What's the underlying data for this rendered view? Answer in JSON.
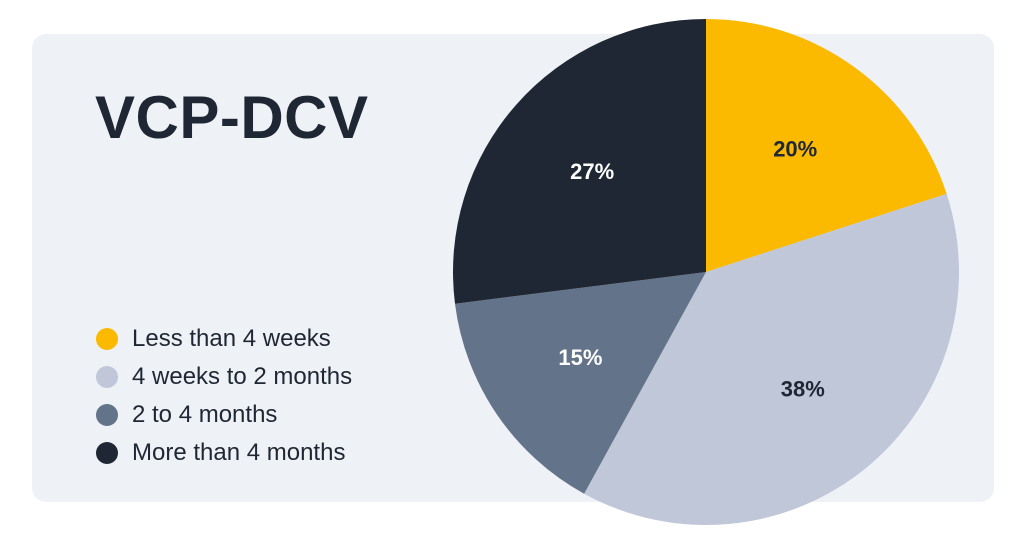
{
  "chart_data": {
    "type": "pie",
    "title": "VCP-DCV",
    "slices": [
      {
        "label": "Less than 4 weeks",
        "value": 20,
        "display": "20%",
        "color": "#fbb900",
        "text_color": "#1e2733"
      },
      {
        "label": "4 weeks to 2 months",
        "value": 38,
        "display": "38%",
        "color": "#c0c7d9",
        "text_color": "#1e2733"
      },
      {
        "label": "2 to 4 months",
        "value": 15,
        "display": "15%",
        "color": "#637389",
        "text_color": "#ffffff"
      },
      {
        "label": "More than 4 months",
        "value": 27,
        "display": "27%",
        "color": "#1e2733",
        "text_color": "#ffffff"
      }
    ],
    "legend_position": "left"
  }
}
